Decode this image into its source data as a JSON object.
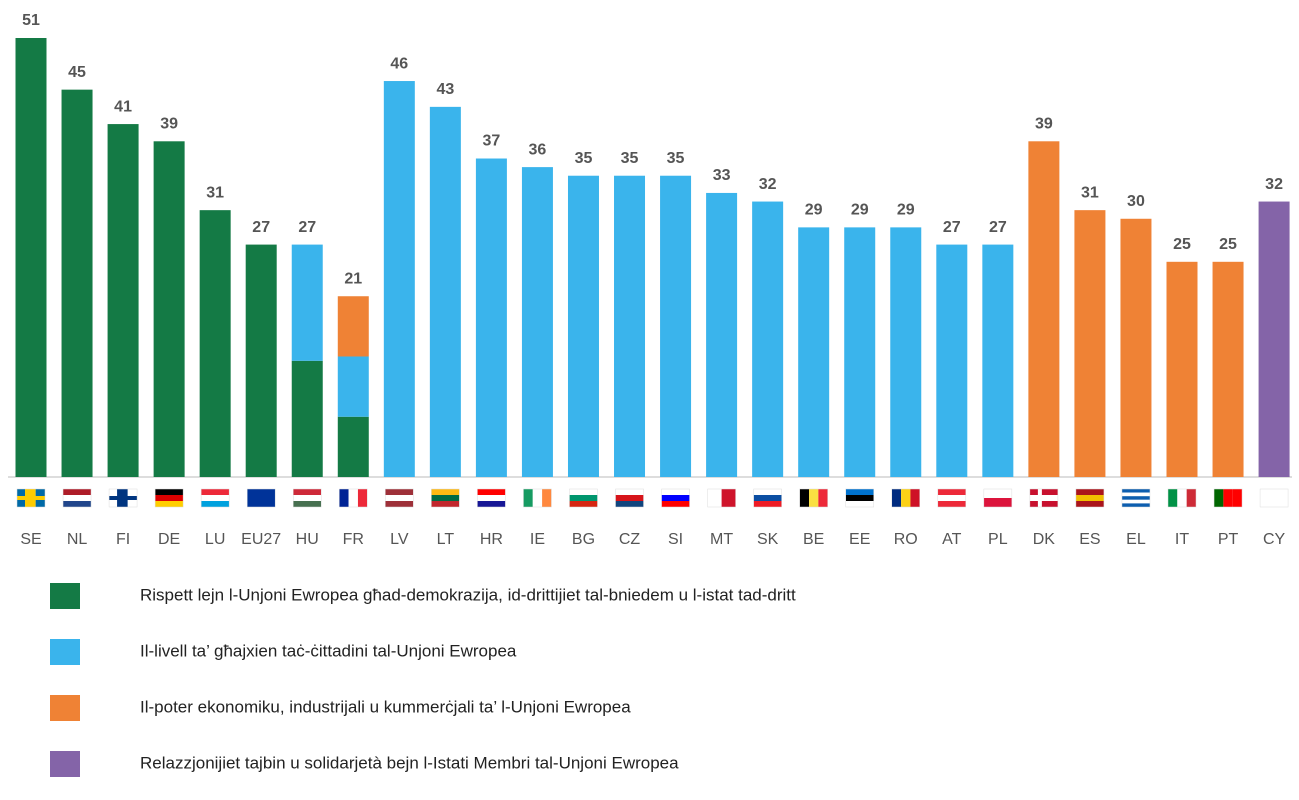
{
  "chart_data": {
    "type": "bar",
    "categories": [
      "SE",
      "NL",
      "FI",
      "DE",
      "LU",
      "EU27",
      "HU",
      "FR",
      "LV",
      "LT",
      "HR",
      "IE",
      "BG",
      "CZ",
      "SI",
      "MT",
      "SK",
      "BE",
      "EE",
      "RO",
      "AT",
      "PL",
      "DK",
      "ES",
      "EL",
      "IT",
      "PT",
      "CY"
    ],
    "values": [
      51,
      45,
      41,
      39,
      31,
      27,
      27,
      21,
      46,
      43,
      37,
      36,
      35,
      35,
      35,
      33,
      32,
      29,
      29,
      29,
      27,
      27,
      39,
      31,
      30,
      25,
      25,
      32
    ],
    "series": [
      {
        "name": "Rispett lejn l-Unjoni Ewropea għad-demokrazija, id-drittijiet tal-bniedem u l-istat tad-dritt",
        "color": "#147a45"
      },
      {
        "name": "Il-livell ta’ għajxien taċ-ċittadini tal-Unjoni Ewropea",
        "color": "#3ab4ec"
      },
      {
        "name": "Il-poter ekonomiku, industrijali u kummerċjali ta’ l-Unjoni Ewropea",
        "color": "#ef8235"
      },
      {
        "name": "Relazzjonijiet tajbin u solidarjetà bejn l-Istati Membri tal-Unjoni Ewropea",
        "color": "#8464a8"
      }
    ],
    "bar_series": [
      [
        0
      ],
      [
        0
      ],
      [
        0
      ],
      [
        0
      ],
      [
        0
      ],
      [
        0
      ],
      [
        0,
        1
      ],
      [
        0,
        1,
        2
      ],
      [
        1
      ],
      [
        1
      ],
      [
        1
      ],
      [
        1
      ],
      [
        1
      ],
      [
        1
      ],
      [
        1
      ],
      [
        1
      ],
      [
        1
      ],
      [
        1
      ],
      [
        1
      ],
      [
        1
      ],
      [
        1
      ],
      [
        1
      ],
      [
        2
      ],
      [
        2
      ],
      [
        2
      ],
      [
        2
      ],
      [
        2
      ],
      [
        3
      ]
    ],
    "ylim": [
      0,
      51
    ]
  }
}
